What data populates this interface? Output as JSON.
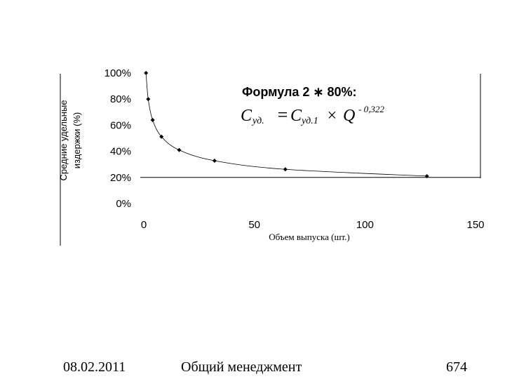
{
  "chart_data": {
    "type": "scatter",
    "title": "",
    "xlabel": "Объем выпуска (шт.)",
    "ylabel_lines": [
      "Средние удельные",
      "издержки (%)"
    ],
    "xlim": [
      0,
      150
    ],
    "ylim": [
      0,
      100
    ],
    "x_ticks": [
      "0",
      "50",
      "100",
      "150"
    ],
    "y_ticks": [
      "0%",
      "20%",
      "40%",
      "60%",
      "80%",
      "100%"
    ],
    "reference_line_y": 20,
    "grid": false,
    "series": [
      {
        "x": [
          1,
          2,
          4,
          8,
          16,
          32,
          64,
          128
        ],
        "y": [
          100,
          80,
          64,
          51.2,
          41,
          32.8,
          26.2,
          21
        ]
      }
    ],
    "annotation": {
      "title": "Формула 2 ∗ 80%:",
      "c_sub_left": "уд.",
      "c_sub_right": "уд.1",
      "c": "C",
      "equals": "=",
      "times": "×",
      "q": "Q",
      "exponent": "- 0,322"
    }
  },
  "footer": {
    "date": "08.02.2011",
    "course": "Общий менеджмент",
    "page": "674"
  }
}
